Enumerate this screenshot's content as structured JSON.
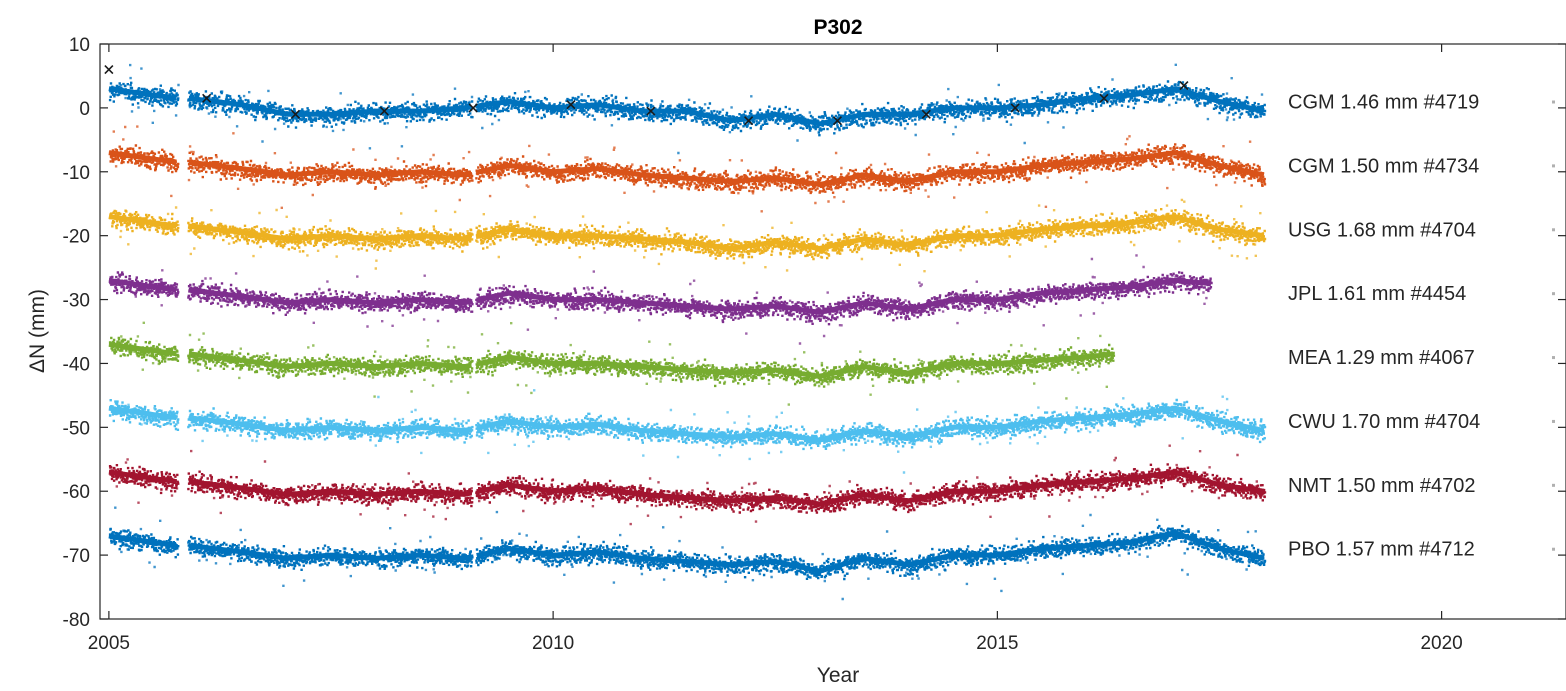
{
  "chart_data": {
    "type": "scatter",
    "title": "P302",
    "xlabel": "Year",
    "ylabel": "ΔN (mm)",
    "xlim": [
      2004.9,
      2021.4
    ],
    "ylim": [
      -80,
      10
    ],
    "x_ticks": [
      2005,
      2010,
      2015,
      2020
    ],
    "x_tick_labels": [
      "2005",
      "2010",
      "2015",
      "2020"
    ],
    "y_ticks": [
      10,
      0,
      -10,
      -20,
      -30,
      -40,
      -50,
      -60,
      -70,
      -80
    ],
    "y_tick_labels": [
      "10",
      "0",
      "-10",
      "-20",
      "-30",
      "-40",
      "-50",
      "-60",
      "-70",
      "-80"
    ],
    "grid": false,
    "legend": "inline labels at right end of each series",
    "gaps": [
      [
        2005.77,
        2005.88
      ],
      [
        2009.08,
        2009.12
      ]
    ],
    "series": [
      {
        "label": "CGM 1.46 mm #4719",
        "color": "#0072BD",
        "x": [
          2005.0,
          2005.5,
          2005.77,
          2005.9,
          2006.5,
          2007.0,
          2007.5,
          2008.0,
          2008.5,
          2009.0,
          2009.5,
          2010.0,
          2010.5,
          2011.0,
          2011.5,
          2012.0,
          2012.5,
          2013.0,
          2013.5,
          2014.0,
          2014.5,
          2015.0,
          2015.5,
          2016.0,
          2016.5,
          2017.0,
          2017.5,
          2018.0
        ],
        "y": [
          3,
          2,
          1.5,
          1.5,
          0.5,
          -1,
          -1,
          -0.5,
          -0.5,
          0,
          1,
          0,
          0.5,
          -0.5,
          -0.5,
          -2,
          -1,
          -2.5,
          -1,
          -1,
          0,
          0,
          0.5,
          1.5,
          2,
          3,
          1,
          -0.5
        ],
        "markers": {
          "x": [
            2005.0,
            2006.1,
            2007.1,
            2008.1,
            2009.1,
            2010.2,
            2011.1,
            2012.2,
            2013.2,
            2014.2,
            2015.2,
            2016.2,
            2017.1
          ],
          "y": [
            6,
            1.5,
            -1,
            -0.5,
            0,
            0.5,
            -0.5,
            -2,
            -2,
            -1,
            0,
            1.5,
            3.5
          ]
        }
      },
      {
        "label": "CGM 1.50 mm #4734",
        "color": "#D95319",
        "x": [
          2005.0,
          2005.5,
          2005.77,
          2005.9,
          2006.5,
          2007.0,
          2007.5,
          2008.0,
          2008.5,
          2009.0,
          2009.5,
          2010.0,
          2010.5,
          2011.0,
          2011.5,
          2012.0,
          2012.5,
          2013.0,
          2013.5,
          2014.0,
          2014.5,
          2015.0,
          2015.5,
          2016.0,
          2016.5,
          2017.0,
          2017.5,
          2018.0
        ],
        "y": [
          -7,
          -8,
          -8.5,
          -8.5,
          -9.5,
          -10.5,
          -10,
          -10.5,
          -10,
          -10.5,
          -9,
          -10,
          -9.5,
          -10.5,
          -11,
          -11.5,
          -11,
          -12,
          -10.5,
          -11.5,
          -10,
          -10,
          -9,
          -8.5,
          -8,
          -7,
          -9,
          -10.5
        ]
      },
      {
        "label": "USG 1.68 mm #4704",
        "color": "#EDB120",
        "x": [
          2005.0,
          2005.5,
          2005.77,
          2005.9,
          2006.5,
          2007.0,
          2007.5,
          2008.0,
          2008.5,
          2009.0,
          2009.5,
          2010.0,
          2010.5,
          2011.0,
          2011.5,
          2012.0,
          2012.5,
          2013.0,
          2013.5,
          2014.0,
          2014.5,
          2015.0,
          2015.5,
          2016.0,
          2016.5,
          2017.0,
          2017.5,
          2018.0
        ],
        "y": [
          -17,
          -18,
          -18.5,
          -18.5,
          -19.5,
          -20.5,
          -20,
          -20.5,
          -20,
          -20.5,
          -19,
          -20,
          -20,
          -20.5,
          -21,
          -22,
          -21,
          -22,
          -20.5,
          -21.5,
          -20,
          -20,
          -19,
          -18.5,
          -18,
          -17,
          -19,
          -20
        ]
      },
      {
        "label": "JPL 1.61 mm #4454",
        "color": "#7E2F8E",
        "x": [
          2005.0,
          2005.5,
          2005.77,
          2005.9,
          2006.5,
          2007.0,
          2007.5,
          2008.0,
          2008.5,
          2009.0,
          2009.5,
          2010.0,
          2010.5,
          2011.0,
          2011.5,
          2012.0,
          2012.5,
          2013.0,
          2013.5,
          2014.0,
          2014.5,
          2015.0,
          2015.5,
          2016.0,
          2016.5,
          2017.0,
          2017.4
        ],
        "y": [
          -27,
          -28,
          -28.5,
          -28.5,
          -29.5,
          -30.5,
          -30,
          -30.5,
          -30,
          -30.5,
          -29,
          -30,
          -30,
          -30.5,
          -31,
          -31.5,
          -31,
          -32,
          -30.5,
          -31.5,
          -30,
          -30,
          -29,
          -28.5,
          -28,
          -27,
          -27.5
        ]
      },
      {
        "label": "MEA 1.29 mm #4067",
        "color": "#77AC30",
        "x": [
          2005.0,
          2005.5,
          2005.77,
          2005.9,
          2006.5,
          2007.0,
          2007.5,
          2008.0,
          2008.5,
          2009.0,
          2009.5,
          2010.0,
          2010.5,
          2011.0,
          2011.5,
          2012.0,
          2012.5,
          2013.0,
          2013.5,
          2014.0,
          2014.5,
          2015.0,
          2015.5,
          2016.0,
          2016.3
        ],
        "y": [
          -37,
          -38,
          -38.5,
          -38.5,
          -39.5,
          -40.5,
          -40,
          -40.5,
          -40,
          -40.5,
          -39,
          -40,
          -40,
          -40.5,
          -41,
          -41.5,
          -41,
          -42,
          -40.5,
          -41.5,
          -40,
          -40,
          -39.5,
          -39,
          -38.5
        ]
      },
      {
        "label": "CWU 1.70 mm #4704",
        "color": "#4DBEEE",
        "x": [
          2005.0,
          2005.5,
          2005.77,
          2005.9,
          2006.5,
          2007.0,
          2007.5,
          2008.0,
          2008.5,
          2009.0,
          2009.5,
          2010.0,
          2010.5,
          2011.0,
          2011.5,
          2012.0,
          2012.5,
          2013.0,
          2013.5,
          2014.0,
          2014.5,
          2015.0,
          2015.5,
          2016.0,
          2016.5,
          2017.0,
          2017.5,
          2018.0
        ],
        "y": [
          -47,
          -48,
          -48.5,
          -48.5,
          -49.5,
          -50.5,
          -50,
          -50.5,
          -50,
          -50.5,
          -49,
          -50,
          -49.5,
          -50.5,
          -51,
          -51.5,
          -51,
          -52,
          -50.5,
          -51.5,
          -50,
          -50,
          -49,
          -48.5,
          -48,
          -47,
          -49,
          -50.5
        ]
      },
      {
        "label": "NMT 1.50 mm #4702",
        "color": "#A2142F",
        "x": [
          2005.0,
          2005.5,
          2005.77,
          2005.9,
          2006.5,
          2007.0,
          2007.5,
          2008.0,
          2008.5,
          2009.0,
          2009.5,
          2010.0,
          2010.5,
          2011.0,
          2011.5,
          2012.0,
          2012.5,
          2013.0,
          2013.5,
          2014.0,
          2014.5,
          2015.0,
          2015.5,
          2016.0,
          2016.5,
          2017.0,
          2017.5,
          2018.0
        ],
        "y": [
          -57,
          -58,
          -58.5,
          -58.5,
          -59.5,
          -60.5,
          -60,
          -60.5,
          -60,
          -60.5,
          -59,
          -60,
          -59.5,
          -60.5,
          -61,
          -61.5,
          -61,
          -62,
          -60.5,
          -61.5,
          -60,
          -60,
          -59,
          -58.5,
          -58,
          -57,
          -59,
          -60
        ]
      },
      {
        "label": "PBO 1.57 mm #4712",
        "color": "#0072BD",
        "x": [
          2005.0,
          2005.5,
          2005.77,
          2005.9,
          2006.5,
          2007.0,
          2007.5,
          2008.0,
          2008.5,
          2009.0,
          2009.5,
          2010.0,
          2010.5,
          2011.0,
          2011.5,
          2012.0,
          2012.5,
          2013.0,
          2013.5,
          2014.0,
          2014.5,
          2015.0,
          2015.5,
          2016.0,
          2016.5,
          2017.0,
          2017.5,
          2018.0
        ],
        "y": [
          -67,
          -68,
          -68.5,
          -68.5,
          -69.5,
          -70.5,
          -70,
          -70.5,
          -70,
          -70.5,
          -69,
          -70,
          -69.5,
          -70.5,
          -71,
          -71.5,
          -71,
          -72.5,
          -70.5,
          -71.5,
          -70,
          -70,
          -69,
          -68.5,
          -68,
          -66.5,
          -69,
          -70.5
        ]
      }
    ]
  }
}
